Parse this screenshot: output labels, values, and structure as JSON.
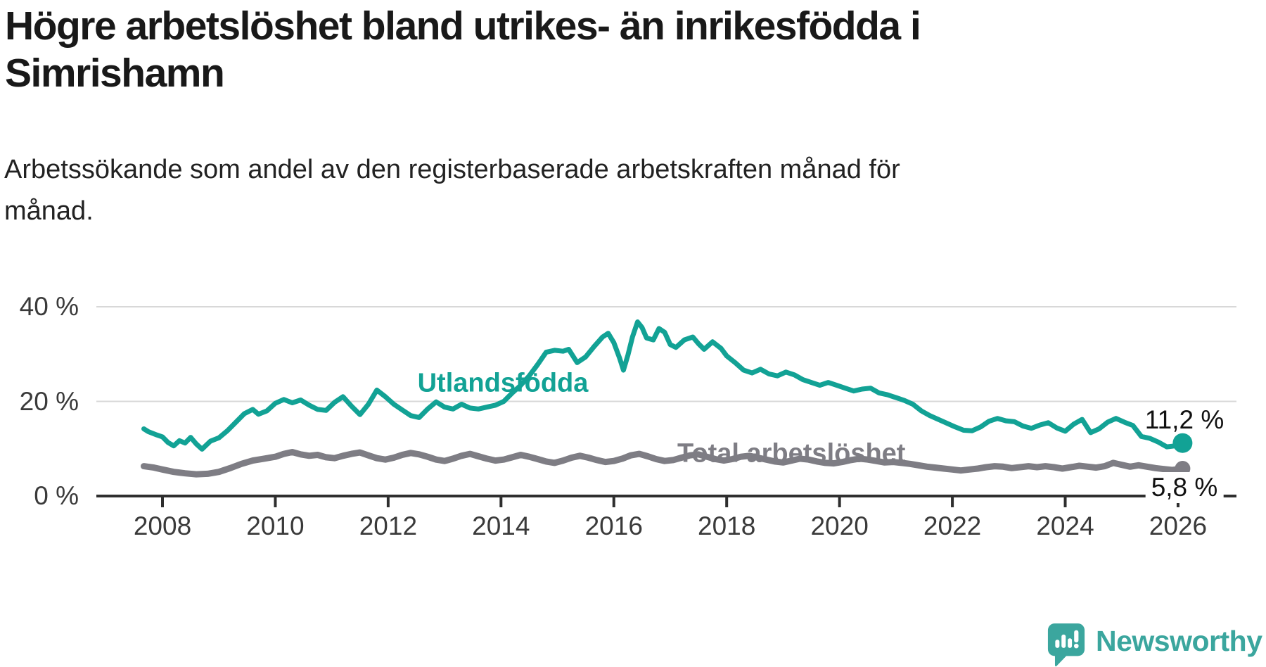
{
  "title": "Högre arbetslöshet bland utrikes- än inrikesfödda i\nSimrishamn",
  "subtitle": "Arbetssökande som andel av den registerbaserade arbetskraften månad för\nmånad.",
  "branding": {
    "name": "Newsworthy",
    "color": "#3BA69E"
  },
  "colors": {
    "foreign_born": "#12A295",
    "total": "#7E7D84",
    "axis": "#2E2E2E",
    "grid": "#D8D8D8",
    "tick_text": "#3A3A3A"
  },
  "chart_data": {
    "type": "line",
    "title": "Högre arbetslöshet bland utrikes- än inrikesfödda i Simrishamn",
    "subtitle": "Arbetssökande som andel av den registerbaserade arbetskraften månad för månad.",
    "unit": "%",
    "grid": "horizontal",
    "legend_position": "inline-labels",
    "x_axis": {
      "ticks": [
        2008,
        2010,
        2012,
        2014,
        2016,
        2018,
        2020,
        2022,
        2024,
        2026
      ],
      "tick_labels": [
        "2008",
        "2010",
        "2012",
        "2014",
        "2016",
        "2018",
        "2020",
        "2022",
        "2024",
        "2026"
      ],
      "range": [
        2007.5,
        2026.4
      ]
    },
    "y_axis": {
      "ticks": [
        0,
        20,
        40
      ],
      "tick_labels": [
        "0 %",
        "20 %",
        "40 %"
      ],
      "range": [
        0,
        42
      ]
    },
    "series": [
      {
        "name": "Utlandsfödda",
        "color": "#12A295",
        "stroke_width": 7,
        "dot_radius": 14,
        "end_label": "11,2 %",
        "end_value": 11.2,
        "points": [
          [
            2007.67,
            14.2
          ],
          [
            2007.75,
            13.6
          ],
          [
            2007.9,
            12.9
          ],
          [
            2008.0,
            12.5
          ],
          [
            2008.1,
            11.3
          ],
          [
            2008.2,
            10.6
          ],
          [
            2008.3,
            11.7
          ],
          [
            2008.4,
            11.2
          ],
          [
            2008.5,
            12.4
          ],
          [
            2008.6,
            11.0
          ],
          [
            2008.7,
            9.9
          ],
          [
            2008.85,
            11.6
          ],
          [
            2009.0,
            12.3
          ],
          [
            2009.15,
            13.8
          ],
          [
            2009.3,
            15.6
          ],
          [
            2009.45,
            17.4
          ],
          [
            2009.6,
            18.3
          ],
          [
            2009.7,
            17.3
          ],
          [
            2009.85,
            18.0
          ],
          [
            2010.0,
            19.6
          ],
          [
            2010.15,
            20.4
          ],
          [
            2010.3,
            19.7
          ],
          [
            2010.45,
            20.3
          ],
          [
            2010.6,
            19.2
          ],
          [
            2010.75,
            18.3
          ],
          [
            2010.9,
            18.1
          ],
          [
            2011.05,
            19.8
          ],
          [
            2011.2,
            21.0
          ],
          [
            2011.35,
            19.0
          ],
          [
            2011.5,
            17.2
          ],
          [
            2011.65,
            19.4
          ],
          [
            2011.8,
            22.4
          ],
          [
            2011.95,
            21.0
          ],
          [
            2012.1,
            19.4
          ],
          [
            2012.25,
            18.2
          ],
          [
            2012.4,
            17.0
          ],
          [
            2012.55,
            16.6
          ],
          [
            2012.7,
            18.4
          ],
          [
            2012.85,
            19.9
          ],
          [
            2013.0,
            18.8
          ],
          [
            2013.15,
            18.4
          ],
          [
            2013.3,
            19.4
          ],
          [
            2013.45,
            18.6
          ],
          [
            2013.6,
            18.4
          ],
          [
            2013.75,
            18.8
          ],
          [
            2013.9,
            19.2
          ],
          [
            2014.05,
            20.0
          ],
          [
            2014.2,
            21.8
          ],
          [
            2014.35,
            23.4
          ],
          [
            2014.5,
            25.4
          ],
          [
            2014.65,
            27.8
          ],
          [
            2014.8,
            30.4
          ],
          [
            2014.95,
            30.8
          ],
          [
            2015.1,
            30.6
          ],
          [
            2015.2,
            31.0
          ],
          [
            2015.35,
            28.2
          ],
          [
            2015.5,
            29.4
          ],
          [
            2015.65,
            31.6
          ],
          [
            2015.8,
            33.6
          ],
          [
            2015.9,
            34.4
          ],
          [
            2016.0,
            32.4
          ],
          [
            2016.1,
            29.2
          ],
          [
            2016.17,
            26.6
          ],
          [
            2016.25,
            29.8
          ],
          [
            2016.33,
            33.6
          ],
          [
            2016.42,
            36.8
          ],
          [
            2016.5,
            35.6
          ],
          [
            2016.58,
            33.4
          ],
          [
            2016.7,
            33.0
          ],
          [
            2016.8,
            35.4
          ],
          [
            2016.9,
            34.6
          ],
          [
            2017.0,
            32.0
          ],
          [
            2017.1,
            31.4
          ],
          [
            2017.25,
            33.0
          ],
          [
            2017.4,
            33.6
          ],
          [
            2017.5,
            32.2
          ],
          [
            2017.6,
            31.0
          ],
          [
            2017.75,
            32.6
          ],
          [
            2017.9,
            31.2
          ],
          [
            2018.0,
            29.6
          ],
          [
            2018.15,
            28.2
          ],
          [
            2018.3,
            26.6
          ],
          [
            2018.45,
            26.0
          ],
          [
            2018.6,
            26.8
          ],
          [
            2018.75,
            25.8
          ],
          [
            2018.9,
            25.4
          ],
          [
            2019.05,
            26.2
          ],
          [
            2019.2,
            25.6
          ],
          [
            2019.35,
            24.6
          ],
          [
            2019.5,
            24.0
          ],
          [
            2019.65,
            23.4
          ],
          [
            2019.8,
            24.0
          ],
          [
            2019.95,
            23.4
          ],
          [
            2020.1,
            22.8
          ],
          [
            2020.25,
            22.2
          ],
          [
            2020.4,
            22.6
          ],
          [
            2020.55,
            22.8
          ],
          [
            2020.7,
            21.8
          ],
          [
            2020.85,
            21.4
          ],
          [
            2021.0,
            20.8
          ],
          [
            2021.15,
            20.2
          ],
          [
            2021.3,
            19.4
          ],
          [
            2021.45,
            18.0
          ],
          [
            2021.6,
            17.0
          ],
          [
            2021.75,
            16.2
          ],
          [
            2021.9,
            15.4
          ],
          [
            2022.05,
            14.6
          ],
          [
            2022.2,
            13.9
          ],
          [
            2022.35,
            13.8
          ],
          [
            2022.5,
            14.6
          ],
          [
            2022.65,
            15.8
          ],
          [
            2022.8,
            16.4
          ],
          [
            2022.95,
            15.9
          ],
          [
            2023.1,
            15.7
          ],
          [
            2023.25,
            14.8
          ],
          [
            2023.4,
            14.3
          ],
          [
            2023.55,
            15.0
          ],
          [
            2023.7,
            15.5
          ],
          [
            2023.85,
            14.4
          ],
          [
            2024.0,
            13.7
          ],
          [
            2024.15,
            15.2
          ],
          [
            2024.3,
            16.2
          ],
          [
            2024.45,
            13.4
          ],
          [
            2024.6,
            14.2
          ],
          [
            2024.75,
            15.6
          ],
          [
            2024.9,
            16.4
          ],
          [
            2025.05,
            15.6
          ],
          [
            2025.2,
            14.9
          ],
          [
            2025.35,
            12.6
          ],
          [
            2025.5,
            12.2
          ],
          [
            2025.65,
            11.4
          ],
          [
            2025.8,
            10.4
          ],
          [
            2025.95,
            10.6
          ],
          [
            2026.08,
            11.2
          ]
        ]
      },
      {
        "name": "Total arbetslöshet",
        "color": "#7E7D84",
        "stroke_width": 9,
        "dot_radius": 11,
        "end_label": "5,8 %",
        "end_value": 5.8,
        "points": [
          [
            2007.67,
            6.3
          ],
          [
            2007.85,
            6.0
          ],
          [
            2008.0,
            5.6
          ],
          [
            2008.2,
            5.1
          ],
          [
            2008.4,
            4.8
          ],
          [
            2008.6,
            4.6
          ],
          [
            2008.8,
            4.7
          ],
          [
            2009.0,
            5.1
          ],
          [
            2009.2,
            5.9
          ],
          [
            2009.4,
            6.8
          ],
          [
            2009.6,
            7.5
          ],
          [
            2009.8,
            7.9
          ],
          [
            2010.0,
            8.3
          ],
          [
            2010.15,
            8.9
          ],
          [
            2010.3,
            9.3
          ],
          [
            2010.45,
            8.8
          ],
          [
            2010.6,
            8.5
          ],
          [
            2010.75,
            8.7
          ],
          [
            2010.9,
            8.2
          ],
          [
            2011.05,
            8.0
          ],
          [
            2011.2,
            8.5
          ],
          [
            2011.35,
            8.9
          ],
          [
            2011.5,
            9.2
          ],
          [
            2011.65,
            8.6
          ],
          [
            2011.8,
            8.0
          ],
          [
            2011.95,
            7.7
          ],
          [
            2012.1,
            8.1
          ],
          [
            2012.25,
            8.7
          ],
          [
            2012.4,
            9.1
          ],
          [
            2012.55,
            8.8
          ],
          [
            2012.7,
            8.3
          ],
          [
            2012.85,
            7.7
          ],
          [
            2013.0,
            7.4
          ],
          [
            2013.15,
            7.9
          ],
          [
            2013.3,
            8.5
          ],
          [
            2013.45,
            8.9
          ],
          [
            2013.6,
            8.4
          ],
          [
            2013.75,
            7.9
          ],
          [
            2013.9,
            7.5
          ],
          [
            2014.05,
            7.7
          ],
          [
            2014.2,
            8.2
          ],
          [
            2014.35,
            8.7
          ],
          [
            2014.5,
            8.3
          ],
          [
            2014.65,
            7.8
          ],
          [
            2014.8,
            7.3
          ],
          [
            2014.95,
            7.0
          ],
          [
            2015.1,
            7.5
          ],
          [
            2015.25,
            8.1
          ],
          [
            2015.4,
            8.5
          ],
          [
            2015.55,
            8.1
          ],
          [
            2015.7,
            7.6
          ],
          [
            2015.85,
            7.2
          ],
          [
            2016.0,
            7.4
          ],
          [
            2016.15,
            7.9
          ],
          [
            2016.3,
            8.6
          ],
          [
            2016.45,
            8.9
          ],
          [
            2016.6,
            8.4
          ],
          [
            2016.75,
            7.8
          ],
          [
            2016.9,
            7.4
          ],
          [
            2017.05,
            7.6
          ],
          [
            2017.2,
            8.1
          ],
          [
            2017.35,
            8.6
          ],
          [
            2017.5,
            8.8
          ],
          [
            2017.65,
            8.3
          ],
          [
            2017.8,
            7.8
          ],
          [
            2017.95,
            7.5
          ],
          [
            2018.1,
            7.8
          ],
          [
            2018.25,
            8.3
          ],
          [
            2018.4,
            8.5
          ],
          [
            2018.55,
            8.1
          ],
          [
            2018.7,
            7.7
          ],
          [
            2018.85,
            7.3
          ],
          [
            2019.0,
            7.1
          ],
          [
            2019.15,
            7.5
          ],
          [
            2019.3,
            7.9
          ],
          [
            2019.45,
            7.7
          ],
          [
            2019.6,
            7.3
          ],
          [
            2019.75,
            7.0
          ],
          [
            2019.9,
            6.9
          ],
          [
            2020.05,
            7.2
          ],
          [
            2020.2,
            7.6
          ],
          [
            2020.35,
            7.9
          ],
          [
            2020.5,
            7.7
          ],
          [
            2020.65,
            7.4
          ],
          [
            2020.8,
            7.1
          ],
          [
            2020.95,
            7.2
          ],
          [
            2021.1,
            7.0
          ],
          [
            2021.25,
            6.8
          ],
          [
            2021.4,
            6.5
          ],
          [
            2021.55,
            6.2
          ],
          [
            2021.7,
            6.0
          ],
          [
            2021.85,
            5.8
          ],
          [
            2022.0,
            5.6
          ],
          [
            2022.15,
            5.4
          ],
          [
            2022.3,
            5.6
          ],
          [
            2022.45,
            5.8
          ],
          [
            2022.6,
            6.1
          ],
          [
            2022.75,
            6.3
          ],
          [
            2022.9,
            6.2
          ],
          [
            2023.05,
            5.9
          ],
          [
            2023.2,
            6.1
          ],
          [
            2023.35,
            6.3
          ],
          [
            2023.5,
            6.1
          ],
          [
            2023.65,
            6.3
          ],
          [
            2023.8,
            6.1
          ],
          [
            2023.95,
            5.8
          ],
          [
            2024.1,
            6.1
          ],
          [
            2024.25,
            6.4
          ],
          [
            2024.4,
            6.2
          ],
          [
            2024.55,
            6.0
          ],
          [
            2024.7,
            6.3
          ],
          [
            2024.85,
            7.0
          ],
          [
            2025.0,
            6.6
          ],
          [
            2025.15,
            6.2
          ],
          [
            2025.3,
            6.5
          ],
          [
            2025.45,
            6.2
          ],
          [
            2025.6,
            5.9
          ],
          [
            2025.75,
            5.7
          ],
          [
            2025.9,
            5.5
          ],
          [
            2026.08,
            5.8
          ]
        ]
      }
    ]
  }
}
